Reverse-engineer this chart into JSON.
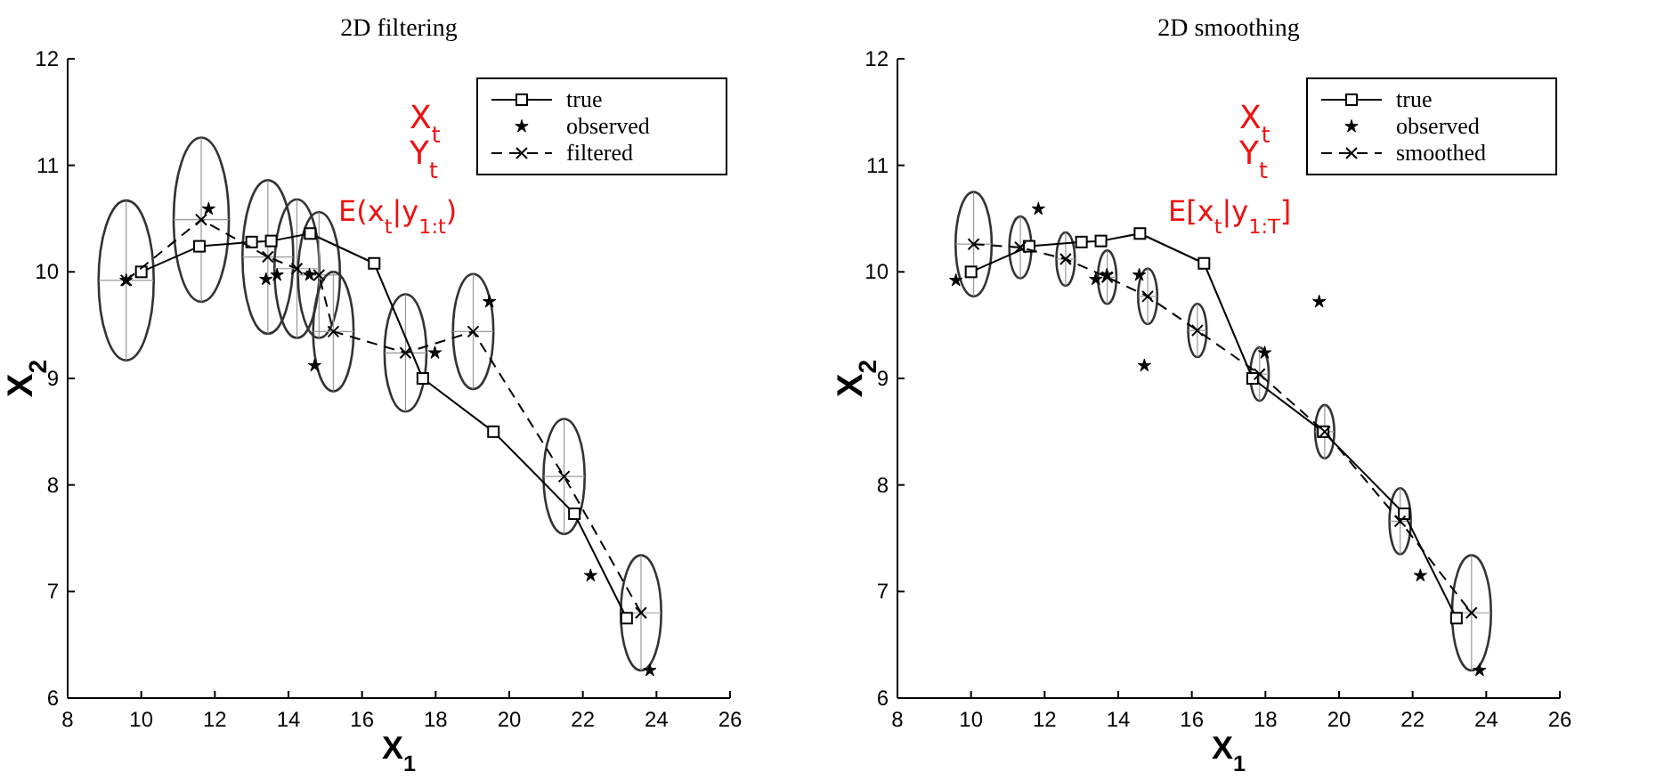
{
  "chart_data": [
    {
      "type": "line",
      "title": "2D filtering",
      "xlabel": "X$_{1}$",
      "ylabel": "X$_{2}$",
      "xlim": [
        8,
        26
      ],
      "ylim": [
        6,
        12
      ],
      "xticks": [
        8,
        10,
        12,
        14,
        16,
        18,
        20,
        22,
        24,
        26
      ],
      "yticks": [
        6,
        7,
        8,
        9,
        10,
        11,
        12
      ],
      "grid": false,
      "legend": "top right",
      "annotations": [
        "X$_{t}$",
        "Y$_{t}$",
        "E(x$_{t}$|y$_{1:t}$)"
      ],
      "series": [
        {
          "name": "true",
          "type": "line",
          "color": "#000000",
          "marker": "square",
          "line_style": "solid",
          "x": [
            10.0,
            11.58,
            13.0,
            13.53,
            14.59,
            16.33,
            17.65,
            19.57,
            21.77,
            23.19
          ],
          "values": [
            10.0,
            10.24,
            10.28,
            10.29,
            10.36,
            10.08,
            9.0,
            8.5,
            7.73,
            6.75
          ]
        },
        {
          "name": "observed",
          "type": "scatter",
          "color": "#000000",
          "marker": "star",
          "x": [
            9.59,
            11.83,
            13.39,
            13.69,
            14.57,
            14.71,
            17.98,
            19.46,
            22.21,
            23.82
          ],
          "values": [
            9.92,
            10.59,
            9.93,
            9.97,
            9.97,
            9.12,
            9.24,
            9.72,
            7.15,
            6.26
          ]
        },
        {
          "name": "filtered",
          "type": "line",
          "color": "#000000",
          "marker": "cross",
          "line_style": "dashed",
          "x": [
            9.59,
            11.63,
            13.44,
            14.23,
            14.83,
            15.22,
            17.18,
            19.02,
            21.49,
            23.58
          ],
          "values": [
            9.92,
            10.49,
            10.14,
            10.03,
            9.97,
            9.44,
            9.24,
            9.44,
            8.08,
            6.8
          ],
          "xerrors": [
            0.75,
            0.75,
            0.69,
            0.61,
            0.57,
            0.55,
            0.57,
            0.55,
            0.56,
            0.55
          ],
          "errors": [
            0.75,
            0.77,
            0.72,
            0.65,
            0.59,
            0.56,
            0.55,
            0.54,
            0.54,
            0.54
          ]
        }
      ]
    },
    {
      "type": "line",
      "title": "2D smoothing",
      "xlabel": "X$_{1}$",
      "ylabel": "X$_{2}$",
      "xlim": [
        8,
        26
      ],
      "ylim": [
        6,
        12
      ],
      "xticks": [
        8,
        10,
        12,
        14,
        16,
        18,
        20,
        22,
        24,
        26
      ],
      "yticks": [
        6,
        7,
        8,
        9,
        10,
        11,
        12
      ],
      "grid": false,
      "legend": "top right",
      "annotations": [
        "X$_{t}$",
        "Y$_{t}$",
        "E[x$_{t}$|y$_{1:T}$]"
      ],
      "series": [
        {
          "name": "true",
          "type": "line",
          "color": "#000000",
          "marker": "square",
          "line_style": "solid",
          "x": [
            10.0,
            11.58,
            13.0,
            13.53,
            14.59,
            16.33,
            17.65,
            19.57,
            21.77,
            23.19
          ],
          "values": [
            10.0,
            10.24,
            10.28,
            10.29,
            10.36,
            10.08,
            9.0,
            8.5,
            7.73,
            6.75
          ]
        },
        {
          "name": "observed",
          "type": "scatter",
          "color": "#000000",
          "marker": "star",
          "x": [
            9.59,
            11.83,
            13.39,
            13.69,
            14.57,
            14.71,
            17.98,
            19.46,
            22.21,
            23.82
          ],
          "values": [
            9.92,
            10.59,
            9.93,
            9.97,
            9.97,
            9.12,
            9.24,
            9.72,
            7.15,
            6.26
          ]
        },
        {
          "name": "smoothed",
          "type": "line",
          "color": "#000000",
          "marker": "cross",
          "line_style": "dashed",
          "x": [
            10.07,
            11.34,
            12.57,
            13.7,
            14.8,
            16.15,
            17.84,
            19.61,
            21.66,
            23.6
          ],
          "values": [
            10.26,
            10.23,
            10.12,
            9.95,
            9.77,
            9.45,
            9.04,
            8.5,
            7.66,
            6.8
          ],
          "xerrors": [
            0.49,
            0.3,
            0.25,
            0.25,
            0.26,
            0.25,
            0.25,
            0.26,
            0.29,
            0.53
          ],
          "errors": [
            0.49,
            0.29,
            0.25,
            0.25,
            0.26,
            0.25,
            0.25,
            0.25,
            0.31,
            0.54
          ]
        }
      ]
    }
  ]
}
